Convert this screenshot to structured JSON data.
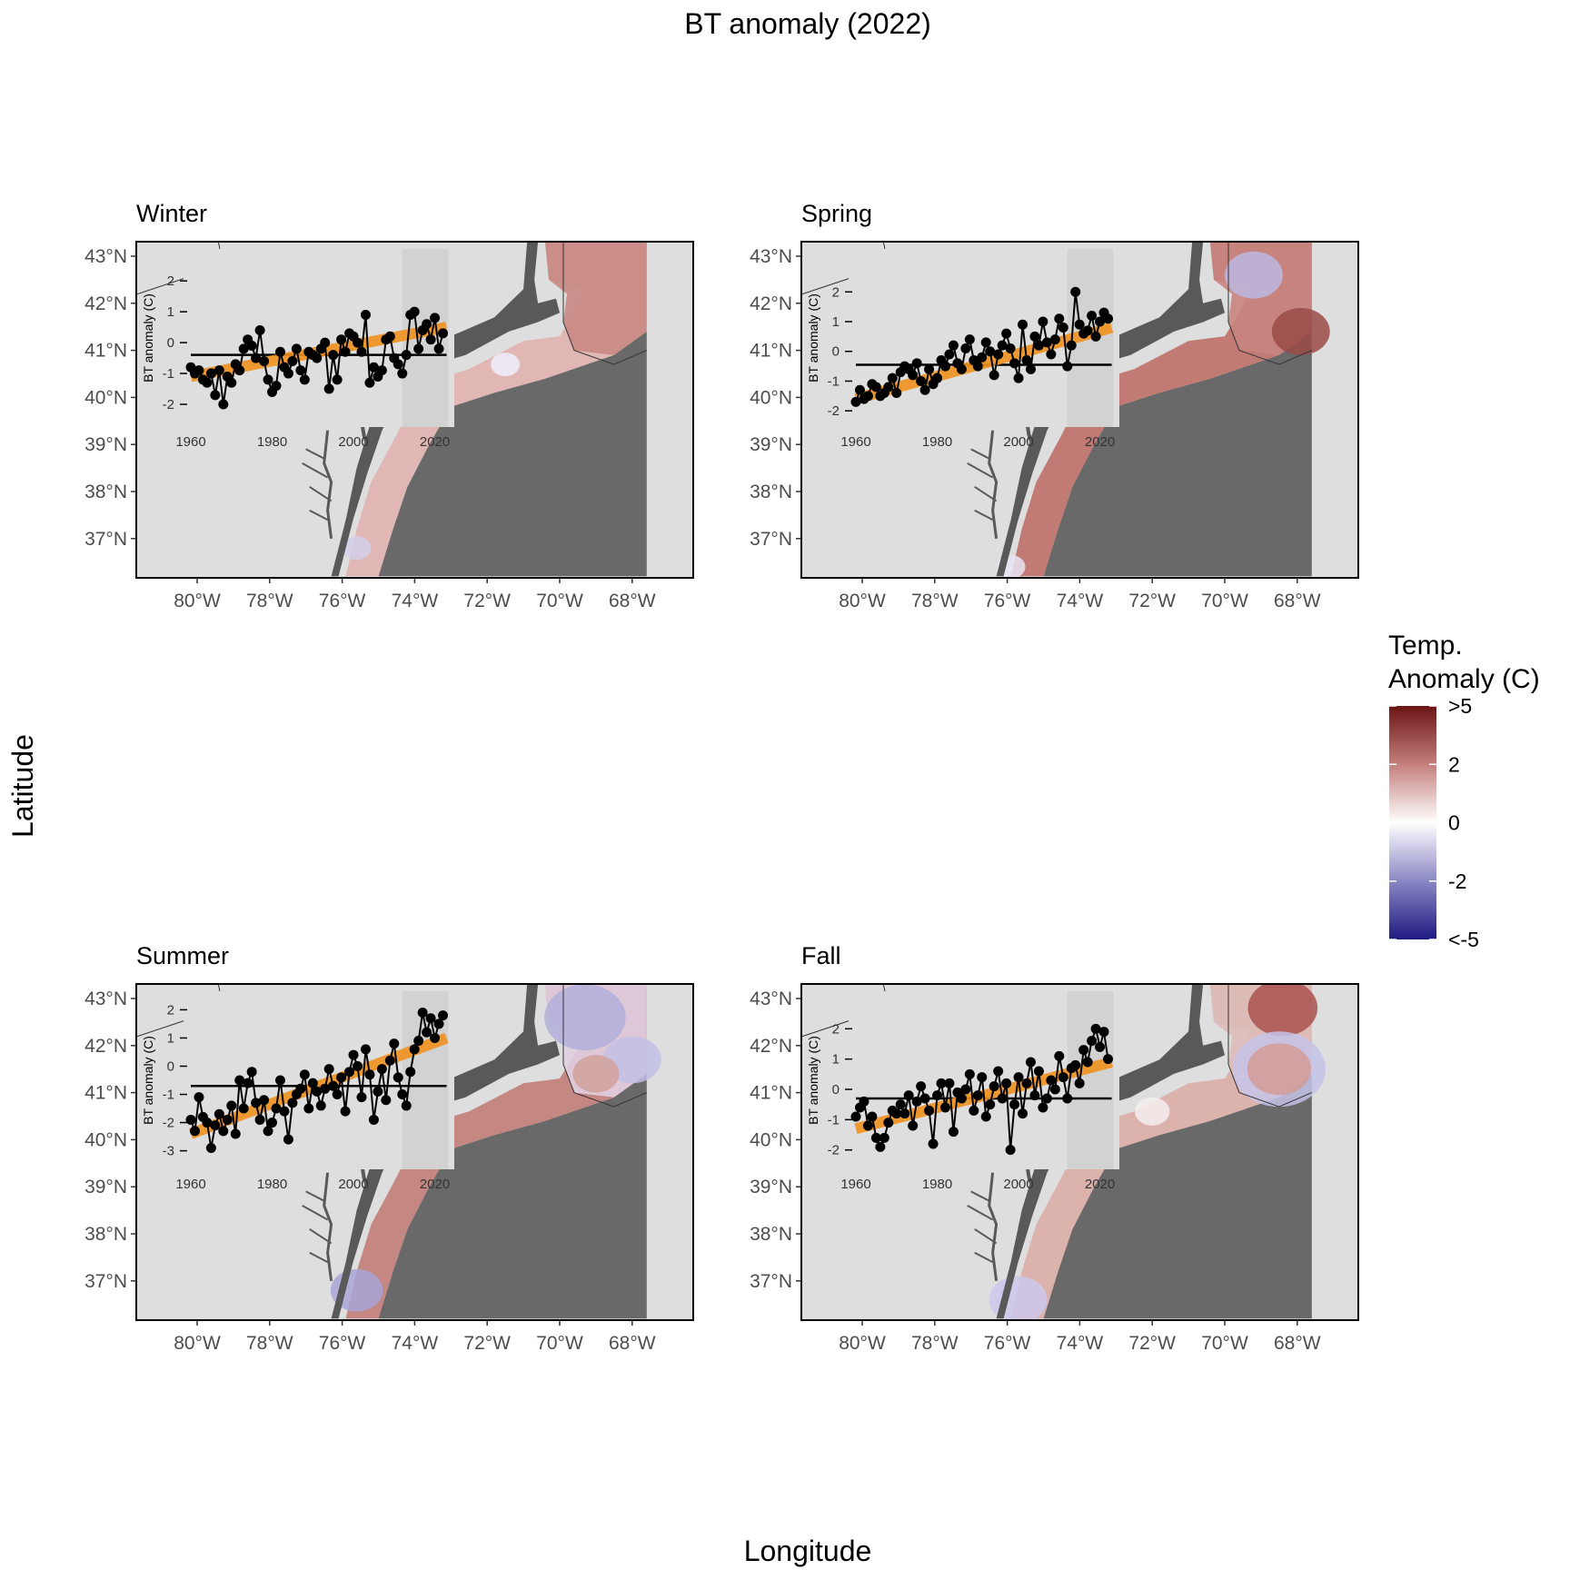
{
  "title": "BT anomaly (2022)",
  "x_label": "Longitude",
  "y_label": "Latitude",
  "colors": {
    "land": "#dedede",
    "offshore": "#696969",
    "coast_dark": "#595959",
    "outline": "#333333",
    "anomaly_low": "#1f1a80",
    "anomaly_zero": "#ffffff",
    "anomaly_high": "#6b1515",
    "trend": "#f0901e"
  },
  "map_axes": {
    "lat_ticks": [
      "43°N",
      "42°N",
      "41°N",
      "40°N",
      "39°N",
      "38°N",
      "37°N"
    ],
    "lon_ticks": [
      "80°W",
      "78°W",
      "76°W",
      "74°W",
      "72°W",
      "70°W",
      "68°W"
    ]
  },
  "legend": {
    "title_line1": "Temp.",
    "title_line2": "Anomaly (C)",
    "labels": [
      ">5",
      "2",
      "0",
      "-2",
      "<-5"
    ]
  },
  "chart_data": {
    "type": "line",
    "x": [
      1960,
      1961,
      1962,
      1963,
      1964,
      1965,
      1966,
      1967,
      1968,
      1969,
      1970,
      1971,
      1972,
      1973,
      1974,
      1975,
      1976,
      1977,
      1978,
      1979,
      1980,
      1981,
      1982,
      1983,
      1984,
      1985,
      1986,
      1987,
      1988,
      1989,
      1990,
      1991,
      1992,
      1993,
      1994,
      1995,
      1996,
      1997,
      1998,
      1999,
      2000,
      2001,
      2002,
      2003,
      2004,
      2005,
      2006,
      2007,
      2008,
      2009,
      2010,
      2011,
      2012,
      2013,
      2014,
      2015,
      2016,
      2017,
      2018,
      2019,
      2020,
      2021,
      2022
    ],
    "xlim": [
      1960,
      2023
    ],
    "x_ticks": [
      "1960",
      "1980",
      "2000",
      "2020"
    ],
    "y_axis_label": "BT anomaly (C)",
    "panels": [
      {
        "season": "Winter",
        "ylim": [
          -2.5,
          2.8
        ],
        "y_ticks": [
          "2",
          "1",
          "0",
          "-1",
          "-2"
        ],
        "tick_values": [
          2,
          1,
          0,
          -1,
          -2
        ],
        "mean": -0.4,
        "trend": [
          -1.1,
          0.5
        ],
        "values": [
          -0.8,
          -1.0,
          -0.9,
          -1.2,
          -1.3,
          -1.0,
          -1.7,
          -0.9,
          -2.0,
          -1.1,
          -1.3,
          -0.7,
          -0.9,
          -0.2,
          0.1,
          -0.1,
          -0.5,
          0.4,
          -0.6,
          -1.2,
          -1.6,
          -1.4,
          -0.3,
          -0.8,
          -1.0,
          -0.6,
          -0.2,
          -0.9,
          -1.2,
          -0.3,
          -0.4,
          -0.5,
          -0.2,
          0.0,
          -1.5,
          -0.4,
          -1.2,
          0.1,
          -0.3,
          0.3,
          0.2,
          0.0,
          -0.3,
          0.9,
          -1.3,
          -0.8,
          -1.1,
          -0.9,
          0.1,
          0.2,
          -0.5,
          -0.7,
          -1.0,
          -0.4,
          0.9,
          1.0,
          -0.2,
          0.4,
          0.6,
          0.1,
          0.8,
          -0.2,
          0.3
        ]
      },
      {
        "season": "Spring",
        "ylim": [
          -2.3,
          3.2
        ],
        "y_ticks": [
          "2",
          "1",
          "0",
          "-1",
          "-2"
        ],
        "tick_values": [
          2,
          1,
          0,
          -1,
          -2
        ],
        "mean": -0.45,
        "trend": [
          -1.6,
          0.8
        ],
        "values": [
          -1.7,
          -1.3,
          -1.6,
          -1.5,
          -1.1,
          -1.2,
          -1.5,
          -1.4,
          -1.2,
          -0.9,
          -1.4,
          -0.7,
          -0.5,
          -0.6,
          -0.8,
          -0.4,
          -1.0,
          -1.3,
          -0.6,
          -1.1,
          -0.9,
          -0.3,
          -0.5,
          -0.1,
          0.2,
          -0.4,
          -0.6,
          0.1,
          0.4,
          -0.3,
          -0.5,
          -0.2,
          0.3,
          0.0,
          -0.8,
          -0.1,
          0.2,
          0.6,
          0.1,
          -0.4,
          -0.9,
          0.9,
          -0.3,
          -0.6,
          0.5,
          0.2,
          1.0,
          0.3,
          -0.1,
          0.4,
          1.1,
          0.8,
          -0.5,
          0.2,
          2.0,
          0.9,
          0.6,
          0.7,
          1.2,
          0.5,
          1.0,
          1.3,
          1.1
        ]
      },
      {
        "season": "Summer",
        "ylim": [
          -3.4,
          2.4
        ],
        "y_ticks": [
          "2",
          "1",
          "0",
          "-1",
          "-2",
          "-3"
        ],
        "tick_values": [
          2,
          1,
          0,
          -1,
          -2,
          -3
        ],
        "mean": -0.7,
        "trend": [
          -2.4,
          1.0
        ],
        "values": [
          -1.9,
          -2.3,
          -1.1,
          -1.8,
          -2.0,
          -2.9,
          -2.1,
          -1.7,
          -2.3,
          -1.9,
          -1.4,
          -2.4,
          -0.5,
          -1.5,
          -0.6,
          -0.2,
          -1.3,
          -1.9,
          -1.2,
          -2.3,
          -2.0,
          -1.5,
          -0.5,
          -1.6,
          -2.6,
          -1.3,
          -1.0,
          -0.8,
          -0.3,
          -1.5,
          -0.6,
          -0.9,
          -1.4,
          -0.8,
          -0.1,
          -0.7,
          -1.0,
          -0.4,
          -1.6,
          -0.2,
          0.4,
          0.0,
          -1.1,
          0.6,
          -0.3,
          -1.9,
          -0.9,
          -0.1,
          -1.2,
          0.2,
          0.8,
          -0.4,
          -1.0,
          -1.4,
          -0.2,
          0.6,
          0.9,
          1.9,
          1.2,
          1.7,
          1.0,
          1.5,
          1.8
        ]
      },
      {
        "season": "Fall",
        "ylim": [
          -2.4,
          3.0
        ],
        "y_ticks": [
          "2",
          "1",
          "0",
          "-1",
          "-2"
        ],
        "tick_values": [
          2,
          1,
          0,
          -1,
          -2
        ],
        "mean": -0.3,
        "trend": [
          -1.3,
          0.9
        ],
        "values": [
          -0.9,
          -0.6,
          -0.4,
          -1.2,
          -0.9,
          -1.6,
          -1.9,
          -1.6,
          -1.1,
          -0.7,
          -0.8,
          -0.5,
          -0.8,
          -0.2,
          -1.2,
          -0.4,
          0.1,
          -0.3,
          -0.7,
          -1.8,
          -0.2,
          0.2,
          -0.6,
          0.2,
          -1.4,
          -0.1,
          -0.3,
          0.0,
          0.5,
          -0.7,
          -0.2,
          0.4,
          -0.9,
          -0.5,
          0.1,
          0.6,
          -0.3,
          0.2,
          -2.0,
          -0.5,
          0.4,
          -0.8,
          0.2,
          0.9,
          -0.2,
          0.6,
          -0.6,
          -0.3,
          0.3,
          0.0,
          1.1,
          0.4,
          -0.3,
          0.7,
          0.8,
          0.2,
          1.3,
          0.9,
          1.6,
          2.0,
          1.4,
          1.9,
          1.0
        ]
      }
    ]
  }
}
